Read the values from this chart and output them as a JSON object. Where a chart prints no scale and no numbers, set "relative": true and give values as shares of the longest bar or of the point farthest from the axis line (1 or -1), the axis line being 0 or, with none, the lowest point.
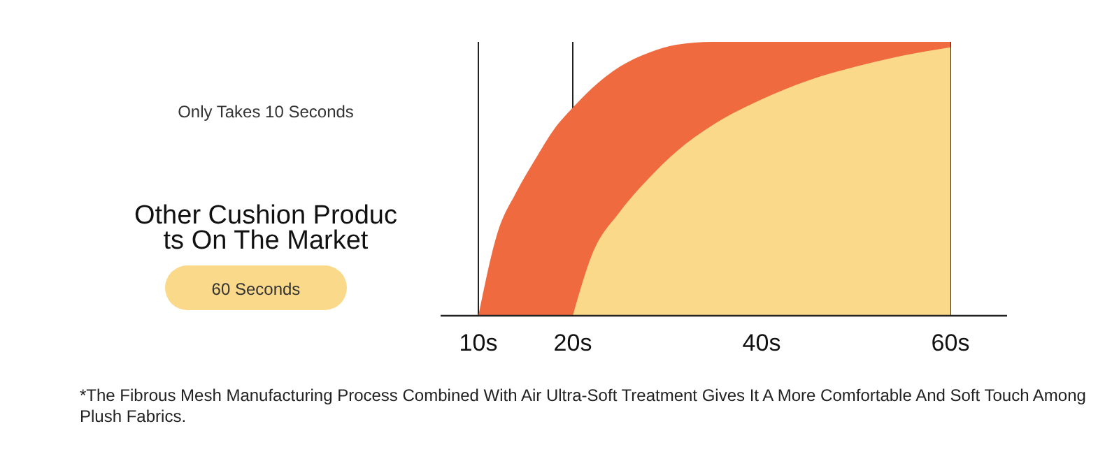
{
  "chart_data": {
    "type": "area",
    "relative": true,
    "x": [
      10,
      12,
      14,
      16,
      18,
      20,
      22,
      25,
      28,
      31,
      35,
      40,
      50,
      60
    ],
    "xlim": [
      6,
      66
    ],
    "xticks": [
      {
        "value": 10,
        "label": "10s"
      },
      {
        "value": 20,
        "label": "20s"
      },
      {
        "value": 40,
        "label": "40s"
      },
      {
        "value": 60,
        "label": "60s"
      }
    ],
    "grid": "x",
    "legend": "left",
    "series": [
      {
        "color": "#ef6b3f",
        "values": [
          0,
          0.3,
          0.45,
          0.57,
          0.68,
          0.76,
          0.83,
          0.91,
          0.96,
          0.99,
          1,
          1,
          1,
          1
        ]
      },
      {
        "name": "Other Cushion Products On The Market",
        "color": "#fbd98a",
        "x": [
          20,
          22,
          25,
          28,
          31,
          35,
          40,
          45,
          50,
          55,
          60
        ],
        "values": [
          0,
          0.22,
          0.38,
          0.5,
          0.6,
          0.7,
          0.79,
          0.86,
          0.91,
          0.95,
          0.98
        ]
      }
    ],
    "annotations": [
      "Only Takes 10 Seconds",
      "60 Seconds",
      "*The Fibrous Mesh Manufacturing Process Combined With Air Ultra-Soft Treatment Gives It A More Comfortable And Soft Touch Among Plush Fabrics."
    ]
  }
}
